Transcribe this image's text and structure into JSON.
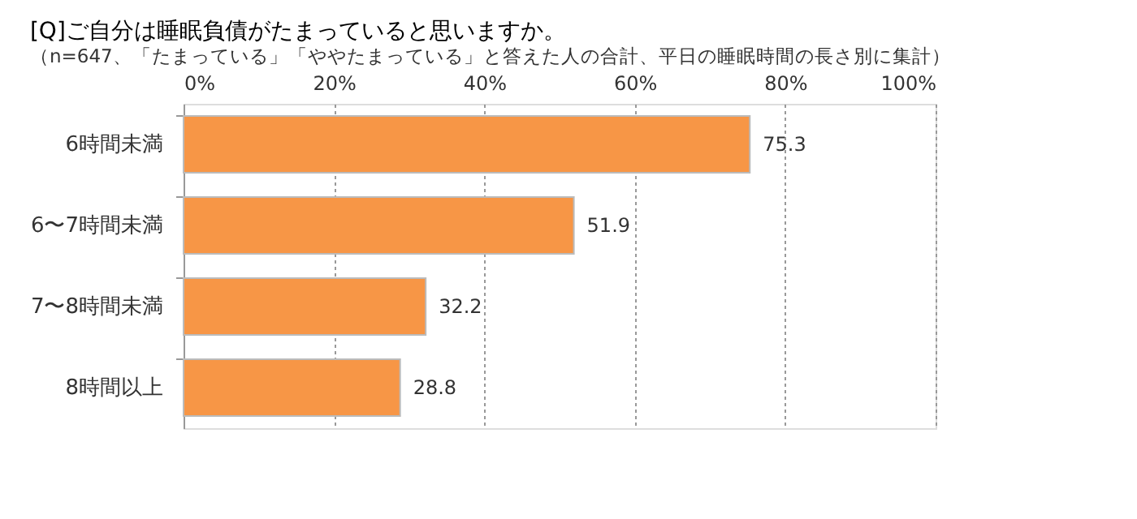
{
  "chart_data": {
    "type": "bar",
    "orientation": "horizontal",
    "title": "[Q]ご自分は睡眠負債がたまっていると思いますか。",
    "subtitle": "（n=647、「たまっている」「ややたまっている」と答えた人の合計、平日の睡眠時間の長さ別に集計）",
    "categories": [
      "6時間未満",
      "6〜7時間未満",
      "7〜8時間未満",
      "8時間以上"
    ],
    "values": [
      75.3,
      51.9,
      32.2,
      28.8
    ],
    "color": "#f79646",
    "xlim": [
      0,
      100
    ],
    "xticks": [
      {
        "value": 0,
        "label": "0%"
      },
      {
        "value": 20,
        "label": "20%"
      },
      {
        "value": 40,
        "label": "40%"
      },
      {
        "value": 60,
        "label": "60%"
      },
      {
        "value": 80,
        "label": "80%"
      },
      {
        "value": 100,
        "label": "100%"
      }
    ],
    "grid": "x",
    "data_labels": true
  }
}
